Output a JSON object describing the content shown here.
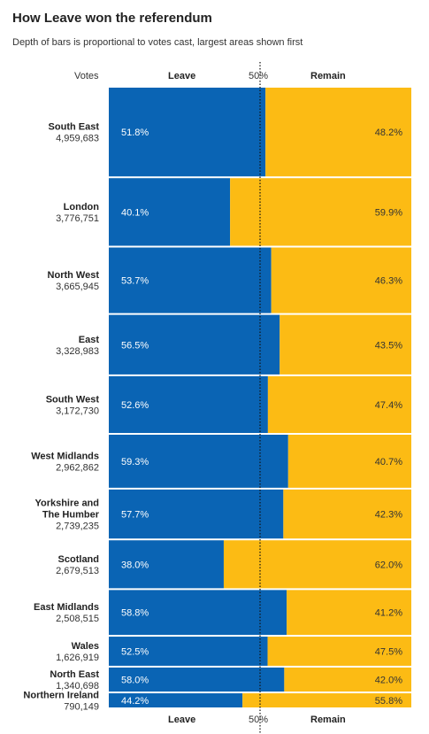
{
  "title": "How Leave won the referendum",
  "subtitle": "Depth of bars is proportional to votes cast, largest areas shown first",
  "colors": {
    "leave": "#0a64b4",
    "remain": "#fcbb14",
    "divider": "#ffffff",
    "midline": "#111111"
  },
  "chart_data": {
    "type": "bar",
    "orientation": "horizontal-stacked-100",
    "col_votes": "Votes",
    "col_leave": "Leave",
    "col_remain": "Remain",
    "midline_label": "50%",
    "midline_value": 50,
    "grid": false,
    "series": [
      {
        "name": "Leave"
      },
      {
        "name": "Remain"
      }
    ],
    "rows": [
      {
        "name": [
          "South East"
        ],
        "votes": "4,959,683",
        "votes_n": 4959683,
        "leave": 51.8,
        "remain": 48.2,
        "leave_label": "51.8%",
        "remain_label": "48.2%"
      },
      {
        "name": [
          "London"
        ],
        "votes": "3,776,751",
        "votes_n": 3776751,
        "leave": 40.1,
        "remain": 59.9,
        "leave_label": "40.1%",
        "remain_label": "59.9%"
      },
      {
        "name": [
          "North West"
        ],
        "votes": "3,665,945",
        "votes_n": 3665945,
        "leave": 53.7,
        "remain": 46.3,
        "leave_label": "53.7%",
        "remain_label": "46.3%"
      },
      {
        "name": [
          "East"
        ],
        "votes": "3,328,983",
        "votes_n": 3328983,
        "leave": 56.5,
        "remain": 43.5,
        "leave_label": "56.5%",
        "remain_label": "43.5%"
      },
      {
        "name": [
          "South West"
        ],
        "votes": "3,172,730",
        "votes_n": 3172730,
        "leave": 52.6,
        "remain": 47.4,
        "leave_label": "52.6%",
        "remain_label": "47.4%"
      },
      {
        "name": [
          "West Midlands"
        ],
        "votes": "2,962,862",
        "votes_n": 2962862,
        "leave": 59.3,
        "remain": 40.7,
        "leave_label": "59.3%",
        "remain_label": "40.7%"
      },
      {
        "name": [
          "Yorkshire and",
          "The Humber"
        ],
        "votes": "2,739,235",
        "votes_n": 2739235,
        "leave": 57.7,
        "remain": 42.3,
        "leave_label": "57.7%",
        "remain_label": "42.3%"
      },
      {
        "name": [
          "Scotland"
        ],
        "votes": "2,679,513",
        "votes_n": 2679513,
        "leave": 38.0,
        "remain": 62.0,
        "leave_label": "38.0%",
        "remain_label": "62.0%"
      },
      {
        "name": [
          "East Midlands"
        ],
        "votes": "2,508,515",
        "votes_n": 2508515,
        "leave": 58.8,
        "remain": 41.2,
        "leave_label": "58.8%",
        "remain_label": "41.2%"
      },
      {
        "name": [
          "Wales"
        ],
        "votes": "1,626,919",
        "votes_n": 1626919,
        "leave": 52.5,
        "remain": 47.5,
        "leave_label": "52.5%",
        "remain_label": "47.5%"
      },
      {
        "name": [
          "North East"
        ],
        "votes": "1,340,698",
        "votes_n": 1340698,
        "leave": 58.0,
        "remain": 42.0,
        "leave_label": "58.0%",
        "remain_label": "42.0%"
      },
      {
        "name": [
          "Northern Ireland"
        ],
        "votes": "790,149",
        "votes_n": 790149,
        "leave": 44.2,
        "remain": 55.8,
        "leave_label": "44.2%",
        "remain_label": "55.8%"
      }
    ]
  }
}
